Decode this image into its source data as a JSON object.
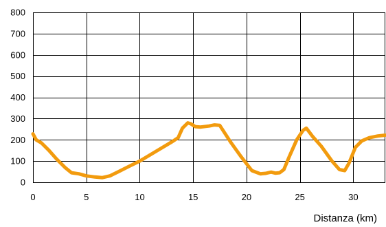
{
  "chart_data": {
    "type": "line",
    "title": "",
    "xlabel": "Distanza (km)",
    "ylabel": "",
    "xlim": [
      0,
      33
    ],
    "ylim": [
      0,
      800
    ],
    "x_ticks": [
      "0",
      "5",
      "10",
      "15",
      "20",
      "25",
      "30"
    ],
    "y_ticks": [
      "0",
      "100",
      "200",
      "300",
      "400",
      "500",
      "600",
      "700",
      "800"
    ],
    "grid": true,
    "legend": "none",
    "line_color": "#f29b0e",
    "series": [
      {
        "x": [
          0,
          0.3,
          0.8,
          1.5,
          2.2,
          3.0,
          3.6,
          4.3,
          5.0,
          5.8,
          6.5,
          7.2,
          8.0,
          9.0,
          10.0,
          11.0,
          12.0,
          13.0,
          13.6,
          14.0,
          14.5,
          14.8,
          15.2,
          15.7,
          16.5,
          17.0,
          17.5,
          18.5,
          19.5,
          20.5,
          21.3,
          21.8,
          22.3,
          22.7,
          23.1,
          23.5,
          24.0,
          24.7,
          25.3,
          25.6,
          26.2,
          27.0,
          28.0,
          28.7,
          29.2,
          29.6,
          30.2,
          30.8,
          31.5,
          32.3,
          33.0
        ],
        "y": [
          228,
          200,
          185,
          150,
          110,
          70,
          45,
          40,
          30,
          25,
          22,
          30,
          50,
          75,
          100,
          130,
          160,
          190,
          210,
          255,
          280,
          275,
          262,
          260,
          265,
          270,
          268,
          190,
          120,
          55,
          40,
          42,
          48,
          43,
          45,
          60,
          120,
          200,
          245,
          255,
          215,
          170,
          100,
          60,
          55,
          90,
          165,
          195,
          210,
          218,
          222
        ]
      }
    ]
  }
}
